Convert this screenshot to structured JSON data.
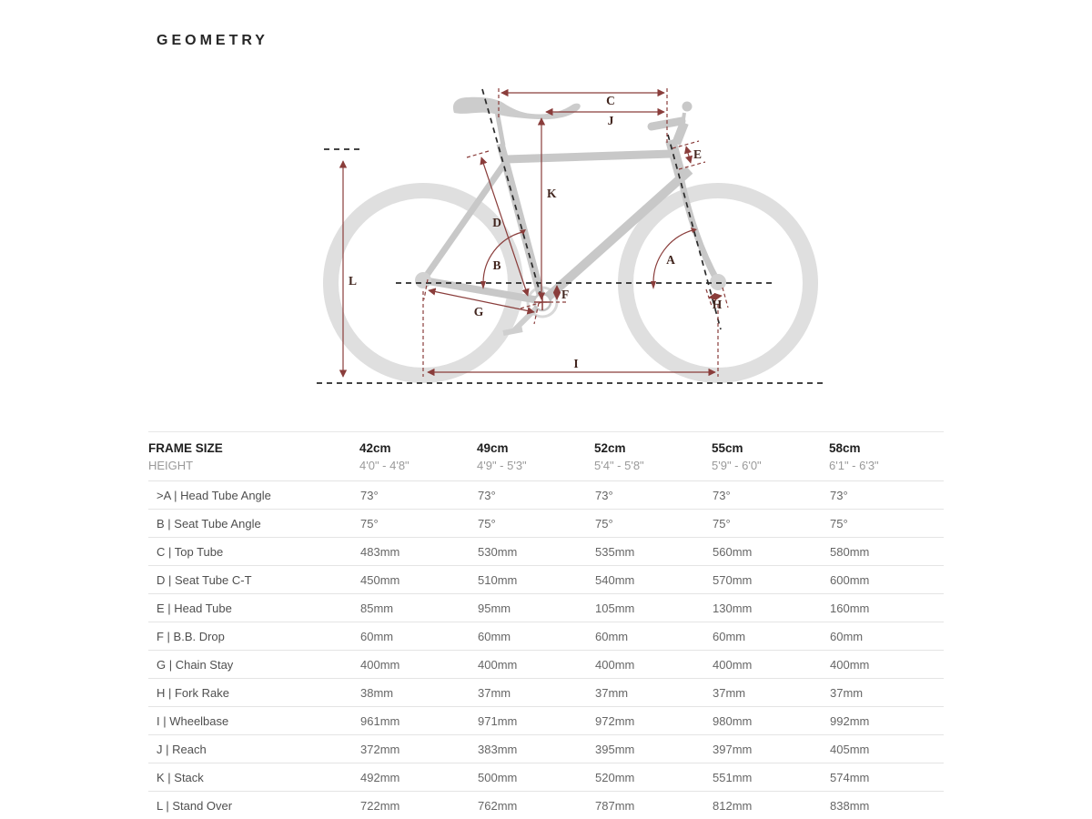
{
  "title": "GEOMETRY",
  "colors": {
    "accent_dim": "#8a3d3b",
    "dim_label": "#42261f",
    "bike_wheel": "#dfdfdf",
    "bike_frame": "#c8c8c8",
    "table_border": "#e4e4e4",
    "header_text": "#1f1f1f",
    "muted_text": "#9a9a9a"
  },
  "diagram": {
    "labels": {
      "A": "A",
      "B": "B",
      "C": "C",
      "D": "D",
      "E": "E",
      "F": "F",
      "G": "G",
      "H": "H",
      "I": "I",
      "J": "J",
      "K": "K",
      "L": "L"
    }
  },
  "table": {
    "frame_size_label": "FRAME SIZE",
    "height_label": "HEIGHT",
    "columns": [
      "42cm",
      "49cm",
      "52cm",
      "55cm",
      "58cm"
    ],
    "heights": [
      "4'0\" - 4'8\"",
      "4'9\" - 5'3\"",
      "5'4\" - 5'8\"",
      "5'9\" - 6'0\"",
      "6'1\" - 6'3\""
    ],
    "rows": [
      {
        "label": ">A | Head Tube Angle",
        "values": [
          "73°",
          "73°",
          "73°",
          "73°",
          "73°"
        ]
      },
      {
        "label": "B | Seat Tube Angle",
        "values": [
          "75°",
          "75°",
          "75°",
          "75°",
          "75°"
        ]
      },
      {
        "label": "C | Top Tube",
        "values": [
          "483mm",
          "530mm",
          "535mm",
          "560mm",
          "580mm"
        ]
      },
      {
        "label": "D | Seat Tube C-T",
        "values": [
          "450mm",
          "510mm",
          "540mm",
          "570mm",
          "600mm"
        ]
      },
      {
        "label": "E | Head Tube",
        "values": [
          "85mm",
          "95mm",
          "105mm",
          "130mm",
          "160mm"
        ]
      },
      {
        "label": "F | B.B. Drop",
        "values": [
          "60mm",
          "60mm",
          "60mm",
          "60mm",
          "60mm"
        ]
      },
      {
        "label": "G | Chain Stay",
        "values": [
          "400mm",
          "400mm",
          "400mm",
          "400mm",
          "400mm"
        ]
      },
      {
        "label": "H | Fork Rake",
        "values": [
          "38mm",
          "37mm",
          "37mm",
          "37mm",
          "37mm"
        ]
      },
      {
        "label": "I | Wheelbase",
        "values": [
          "961mm",
          "971mm",
          "972mm",
          "980mm",
          "992mm"
        ]
      },
      {
        "label": "J | Reach",
        "values": [
          "372mm",
          "383mm",
          "395mm",
          "397mm",
          "405mm"
        ]
      },
      {
        "label": "K | Stack",
        "values": [
          "492mm",
          "500mm",
          "520mm",
          "551mm",
          "574mm"
        ]
      },
      {
        "label": "L | Stand Over",
        "values": [
          "722mm",
          "762mm",
          "787mm",
          "812mm",
          "838mm"
        ]
      }
    ]
  }
}
